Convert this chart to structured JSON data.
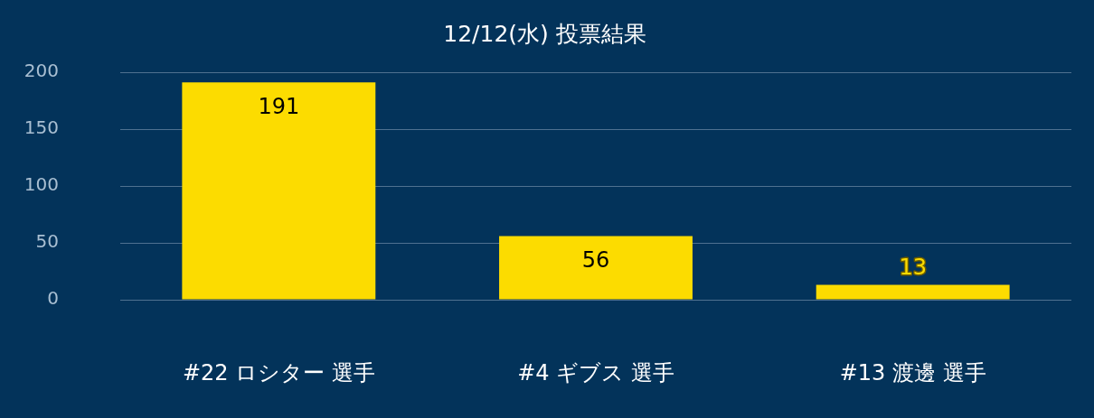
{
  "chart_data": {
    "type": "bar",
    "title": "12/12(水) 投票結果",
    "categories": [
      "#22 ロシター 選手",
      "#4 ギブス 選手",
      "#13 渡邊 選手"
    ],
    "values": [
      191,
      56,
      13
    ],
    "color": "#fcdc00",
    "ylim": [
      0,
      200
    ],
    "yticks": [
      0,
      50,
      100,
      150,
      200
    ],
    "grid": "y",
    "data_labels": true
  }
}
